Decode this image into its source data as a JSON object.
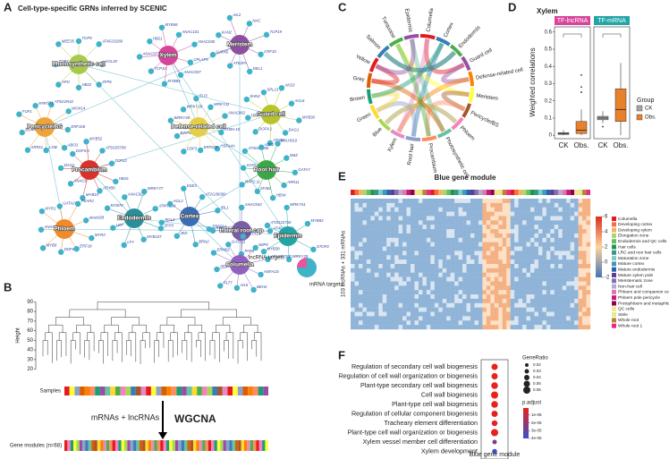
{
  "panel_labels": [
    "A",
    "B",
    "C",
    "D",
    "E",
    "F"
  ],
  "network": {
    "title": "Cell-type-specific GRNs inferred by SCENIC",
    "hubs": [
      {
        "label": "Photosynthetic cell",
        "color": "#a8c94a",
        "targets": [
          "AGL20",
          "ZFP6",
          "HB22",
          "APO",
          "TCP3",
          "MEE35",
          "TCP9",
          "AT4G33280"
        ]
      },
      {
        "label": "Xylem",
        "color": "#d8449c",
        "targets": [
          "ANAC037",
          "MYB83",
          "TCP10",
          "ANAC073",
          "HB21",
          "MYB46",
          "ANAC101",
          "ANAC030",
          "CPLAP5"
        ]
      },
      {
        "label": "Meristem",
        "color": "#8d4fa0",
        "targets": [
          "ATE2FA",
          "GATA6",
          "KAN2",
          "AIL2",
          "NAC",
          "TCP19",
          "CRF10",
          "DEL1"
        ]
      },
      {
        "label": "Guard cell",
        "color": "#b8c42c",
        "targets": [
          "HSFB2B",
          "SHN2",
          "SPL13",
          "AKS3",
          "AGL6",
          "MYB30",
          "DAG1",
          "ATAB1",
          "DOF4.1"
        ]
      },
      {
        "label": "Defense-related cell",
        "color": "#e6cf48",
        "targets": [
          "WRKY28",
          "ELI3",
          "WRKY11",
          "ANAC062",
          "ATBH-15",
          "HSFA4A",
          "ERF019",
          "CDF3",
          "BZIP60",
          "WRKY46"
        ]
      },
      {
        "label": "Pericycle/BS",
        "color": "#f0a33a",
        "targets": [
          "AT5G2R42",
          "WOX14",
          "ERF106",
          "ABO3",
          "LOB",
          "ARR11",
          "MYB55",
          "FUF1",
          "anac071"
        ]
      },
      {
        "label": "Procambium",
        "color": "#d9322b",
        "targets": [
          "TCP22",
          "HB15",
          "ATHB9",
          "MYB10",
          "ANAC6",
          "DAG2",
          "DOF5.6",
          "MYB52",
          "AT5G55790"
        ]
      },
      {
        "label": "Root hair",
        "color": "#3aa849",
        "targets": [
          "ARR11",
          "HB34",
          "MYB1",
          "RAP2.11",
          "GATA26",
          "AT3G60580",
          "AZF1",
          "bHLH010",
          "SMZ",
          "GATA7"
        ]
      },
      {
        "label": "Phloem",
        "color": "#f08a2a",
        "targets": [
          "DOF6",
          "MYB9",
          "ANAC020",
          "MYR1",
          "GATA20",
          "PEAR2",
          "anac028",
          "MYR2",
          "ERF18"
        ]
      },
      {
        "label": "Endodermis",
        "color": "#2b8f9a",
        "targets": [
          "LEP",
          "MYB70",
          "ANAC029",
          "WRKY77",
          "ATMYB84",
          "ZFP3",
          "MYB107",
          "LFY"
        ]
      },
      {
        "label": "Cortex",
        "color": "#3a6cb3",
        "targets": [
          "AGL2",
          "ESE3",
          "AT2G38300",
          "IBL1",
          "ERF014",
          "BRN2",
          "JKD",
          "RGL2"
        ]
      },
      {
        "label": "Lateral root cap",
        "color": "#7d5ca6",
        "targets": [
          "ANAC042",
          "AT4G10450",
          "PAP3",
          "AT3G10390"
        ]
      },
      {
        "label": "Epidermis",
        "color": "#23a5a5",
        "targets": [
          "MYB92",
          "STOP2",
          "WRKY29",
          "MYB39",
          "AT2G22750",
          "WRKY51"
        ]
      },
      {
        "label": "Columella",
        "color": "#9360c0",
        "targets": [
          "HSFA1D",
          "BEH4",
          "AIL6",
          "PLT7",
          "ATS",
          "ERM02",
          "GATA11",
          "GATA12",
          "WIP5",
          "AT1G77200"
        ]
      }
    ],
    "legend": [
      "lncRNA targets",
      "mRNA targets"
    ]
  },
  "dendrogram": {
    "axis_label": "Height",
    "ticks": [
      20,
      30,
      40,
      50,
      60,
      70,
      80,
      90
    ],
    "samples_label": "Samples",
    "arrow_label": "mRNAs + lncRNAs",
    "method": "WGCNA",
    "modules_label": "Gene modules (n=68)"
  },
  "chord": {
    "labels": [
      "Columella",
      "Cortex",
      "Endodermis",
      "Guard cell",
      "Defense-related cell",
      "Meristem",
      "Pericycle/BS",
      "Phloem",
      "Photosynthetic cell",
      "Procambium",
      "Root hair",
      "Xylem",
      "Blue",
      "Green",
      "Brown",
      "Grey",
      "Yellow",
      "Salmon",
      "Turquoise",
      "Epidermis"
    ]
  },
  "heatmap": {
    "title": "Blue gene module",
    "row_label": "103 lncRNAs + 331 mRNAs",
    "colorbar_ticks": [
      6,
      4,
      2,
      0,
      -2
    ],
    "legend": [
      "Columella",
      "Developing cortex",
      "Developing xylem",
      "Elongation zone",
      "Endodermis and QC cells",
      "Hair cells",
      "LRC and non hair cells",
      "Maturation zone",
      "Mature cortex",
      "Mature endodermis",
      "Mature xylem pole",
      "Meristematic zone",
      "Non-hair cell",
      "Phloem and companion cells",
      "Phloem pole pericycle",
      "Protophloem and metaphloem",
      "QC cells",
      "Stele",
      "Whole root",
      "Whole root 1"
    ],
    "legend_colors": [
      "#e41a1c",
      "#f46d43",
      "#fdae61",
      "#a6d96a",
      "#66bd63",
      "#1a9850",
      "#35978f",
      "#80cdc1",
      "#4393c3",
      "#2166ac",
      "#5e3c99",
      "#8073ac",
      "#b2abd2",
      "#de77ae",
      "#c51b7d",
      "#8e0152",
      "#fee08b",
      "#d9ef8b",
      "#bf812d",
      "#e7298a"
    ]
  },
  "chart_data": [
    {
      "type": "box",
      "title": "Xylem",
      "facets": [
        "TF-lncRNA",
        "TF-mRNA"
      ],
      "facet_colors": [
        "#d8449c",
        "#23a5a5"
      ],
      "categories": [
        "CK",
        "Obs."
      ],
      "y_label": "Weighted correlations",
      "ylim": [
        -0.02,
        0.63
      ],
      "yticks": [
        0,
        0.1,
        0.2,
        0.3,
        0.4,
        0.5,
        0.6
      ],
      "legend_title": "Group",
      "series": [
        {
          "name": "CK",
          "color": "#a6a6a6",
          "boxes": [
            {
              "min": 0.0,
              "q1": 0.005,
              "median": 0.01,
              "q3": 0.015,
              "max": 0.03,
              "outliers": []
            },
            {
              "min": 0.07,
              "q1": 0.09,
              "median": 0.1,
              "q3": 0.11,
              "max": 0.14,
              "outliers": [
                0.05
              ]
            }
          ]
        },
        {
          "name": "Obs.",
          "color": "#e8812c",
          "boxes": [
            {
              "min": 0.0,
              "q1": 0.01,
              "median": 0.03,
              "q3": 0.08,
              "max": 0.15,
              "outliers": [
                0.25,
                0.28,
                0.35
              ]
            },
            {
              "min": 0.0,
              "q1": 0.08,
              "median": 0.15,
              "q3": 0.27,
              "max": 0.42,
              "outliers": []
            }
          ]
        }
      ]
    },
    {
      "type": "dot",
      "x_label": "Blue gene module",
      "categories": [
        "Regulation of secondary cell wall biogenesis",
        "Regulation of cell wall organization or biogenesis",
        "Plant-type secondary cell wall biogenesis",
        "Cell wall biogenesis",
        "Plant-type cell wall biogenesis",
        "Regulation of cellular component biogenesis",
        "Tracheary element differentiation",
        "Plant-type cell wall organization or biogenesis",
        "Xylem vessel member cell differentiation",
        "Xylem development"
      ],
      "values": [
        0.05,
        0.05,
        0.055,
        0.06,
        0.055,
        0.05,
        0.045,
        0.06,
        0.03,
        0.035
      ],
      "p_adjust": [
        1e-06,
        1e-06,
        1e-06,
        1e-06,
        1e-06,
        2e-06,
        3e-06,
        2e-06,
        2.5e-05,
        4e-05
      ],
      "size_title": "GeneRatio",
      "size_ticks": [
        0.02,
        0.03,
        0.04,
        0.05,
        0.06
      ],
      "color_title": "p.adjust",
      "color_ticks": [
        {
          "value": 1e-05,
          "label": "1e-05"
        },
        {
          "value": 2e-05,
          "label": "2e-05"
        },
        {
          "value": 3e-05,
          "label": "3e-05"
        },
        {
          "value": 4e-05,
          "label": "4e-05"
        }
      ],
      "clim": [
        1e-06,
        4e-05
      ],
      "color_low": "#e8221c",
      "color_high": "#3b4ec8"
    }
  ]
}
